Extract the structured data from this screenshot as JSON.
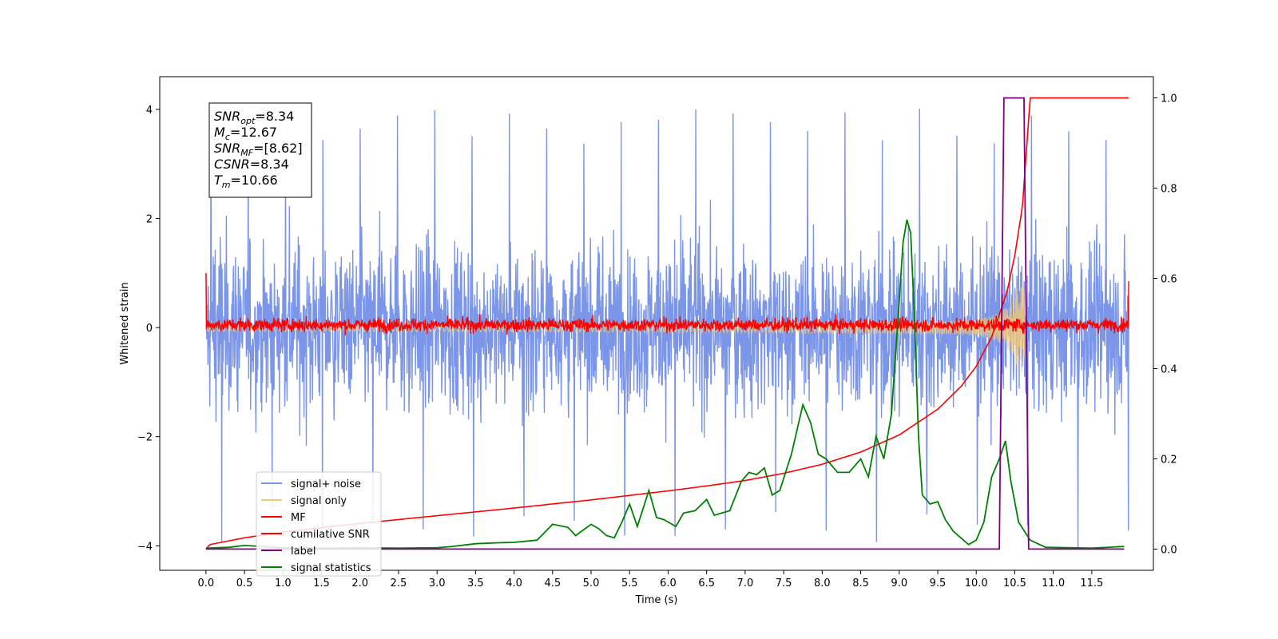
{
  "chart_data": {
    "type": "line",
    "title": "",
    "xlabel": "Time (s)",
    "ylabel": "Whitened strain",
    "ylabel_right": "",
    "xlim": [
      -0.6,
      12.3
    ],
    "ylim": [
      -4.45,
      4.6
    ],
    "ylim_right": [
      -0.047,
      1.047
    ],
    "xticks": [
      0.0,
      0.5,
      1.0,
      1.5,
      2.0,
      2.5,
      3.0,
      3.5,
      4.0,
      4.5,
      5.0,
      5.5,
      6.0,
      6.5,
      7.0,
      7.5,
      8.0,
      8.5,
      9.0,
      9.5,
      10.0,
      10.5,
      11.0,
      11.5
    ],
    "xtick_labels": [
      "0.0",
      "0.5",
      "1.0",
      "1.5",
      "2.0",
      "2.5",
      "3.0",
      "3.5",
      "4.0",
      "4.5",
      "5.0",
      "5.5",
      "6.0",
      "6.5",
      "7.0",
      "7.5",
      "8.0",
      "8.5",
      "9.0",
      "9.5",
      "10.0",
      "10.5",
      "11.0",
      "11.5"
    ],
    "yticks": [
      -4,
      -2,
      0,
      2,
      4
    ],
    "ytick_labels": [
      "−4",
      "−2",
      "0",
      "2",
      "4"
    ],
    "yticks_right": [
      0.0,
      0.2,
      0.4,
      0.6,
      0.8,
      1.0
    ],
    "ytick_labels_right": [
      "0.0",
      "0.2",
      "0.4",
      "0.6",
      "0.8",
      "1.0"
    ],
    "grid": false,
    "legend_position": "lower-left",
    "info_box": {
      "position": "top-left",
      "lines": [
        {
          "base": "SNR",
          "sub": "opt",
          "value": "=8.34"
        },
        {
          "base": "M",
          "sub": "c",
          "value": "=12.67"
        },
        {
          "base": "SNR",
          "sub": "MF",
          "value": "=[8.62]"
        },
        {
          "base": "CSNR",
          "sub": "",
          "value": "=8.34"
        },
        {
          "base": "T",
          "sub": "m",
          "value": "=10.66"
        }
      ]
    },
    "series": [
      {
        "name": "signal+ noise",
        "color": "#7b95e8",
        "axis": "left",
        "kind": "noise",
        "x_range": [
          0.0,
          11.98
        ],
        "envelope_low": -3.3,
        "envelope_high": 3.2,
        "peak_max": 4.15,
        "peak_min": -4.05
      },
      {
        "name": "signal only",
        "color": "#f5c873",
        "axis": "left",
        "kind": "chirp",
        "x_range": [
          0.0,
          10.66
        ],
        "amplitude_at_merger": 0.82
      },
      {
        "name": "MF",
        "color": "#ff0000",
        "axis": "left",
        "kind": "noise",
        "x_range": [
          0.0,
          11.98
        ],
        "envelope_low": -0.15,
        "envelope_high": 0.3,
        "start_value": 1.0,
        "end_value": 0.85
      },
      {
        "name": "cumilative SNR",
        "color": "#ff0000",
        "axis": "right",
        "x": [
          0.0,
          0.05,
          0.5,
          1.0,
          2.0,
          3.0,
          4.0,
          5.0,
          6.0,
          6.5,
          7.0,
          7.5,
          8.0,
          8.5,
          9.0,
          9.5,
          9.8,
          10.0,
          10.2,
          10.4,
          10.5,
          10.6,
          10.65,
          10.7,
          11.98
        ],
        "values": [
          0.0,
          0.01,
          0.025,
          0.038,
          0.057,
          0.074,
          0.091,
          0.109,
          0.129,
          0.14,
          0.152,
          0.168,
          0.188,
          0.215,
          0.253,
          0.31,
          0.36,
          0.405,
          0.47,
          0.57,
          0.65,
          0.76,
          0.88,
          1.0,
          1.0
        ]
      },
      {
        "name": "label",
        "color": "#800080",
        "axis": "right",
        "x": [
          0.0,
          10.3,
          10.36,
          10.62,
          10.68,
          11.92
        ],
        "values": [
          0.0,
          0.0,
          1.0,
          1.0,
          0.0,
          0.0
        ]
      },
      {
        "name": "signal statistics",
        "color": "#008000",
        "axis": "right",
        "x": [
          0.0,
          0.3,
          0.5,
          0.8,
          1.0,
          1.5,
          2.0,
          2.5,
          3.0,
          3.2,
          3.5,
          3.8,
          4.0,
          4.3,
          4.5,
          4.7,
          4.8,
          5.0,
          5.1,
          5.2,
          5.3,
          5.4,
          5.5,
          5.6,
          5.75,
          5.85,
          5.95,
          6.1,
          6.2,
          6.35,
          6.5,
          6.6,
          6.8,
          6.95,
          7.05,
          7.15,
          7.25,
          7.35,
          7.45,
          7.6,
          7.75,
          7.85,
          7.95,
          8.05,
          8.2,
          8.35,
          8.5,
          8.6,
          8.7,
          8.8,
          8.9,
          9.0,
          9.05,
          9.1,
          9.15,
          9.2,
          9.25,
          9.3,
          9.4,
          9.5,
          9.6,
          9.7,
          9.8,
          9.9,
          10.0,
          10.1,
          10.2,
          10.3,
          10.38,
          10.45,
          10.55,
          10.7,
          10.9,
          11.5,
          11.92
        ],
        "values": [
          0.002,
          0.004,
          0.008,
          0.005,
          0.003,
          0.002,
          0.003,
          0.002,
          0.003,
          0.006,
          0.012,
          0.014,
          0.015,
          0.02,
          0.055,
          0.048,
          0.03,
          0.055,
          0.045,
          0.03,
          0.025,
          0.06,
          0.1,
          0.05,
          0.13,
          0.07,
          0.065,
          0.05,
          0.08,
          0.085,
          0.11,
          0.075,
          0.085,
          0.15,
          0.17,
          0.165,
          0.18,
          0.12,
          0.13,
          0.21,
          0.32,
          0.28,
          0.21,
          0.2,
          0.17,
          0.17,
          0.2,
          0.16,
          0.25,
          0.2,
          0.3,
          0.55,
          0.68,
          0.73,
          0.7,
          0.5,
          0.25,
          0.12,
          0.1,
          0.105,
          0.065,
          0.04,
          0.025,
          0.01,
          0.02,
          0.06,
          0.16,
          0.2,
          0.24,
          0.15,
          0.06,
          0.02,
          0.004,
          0.002,
          0.006
        ]
      }
    ]
  }
}
